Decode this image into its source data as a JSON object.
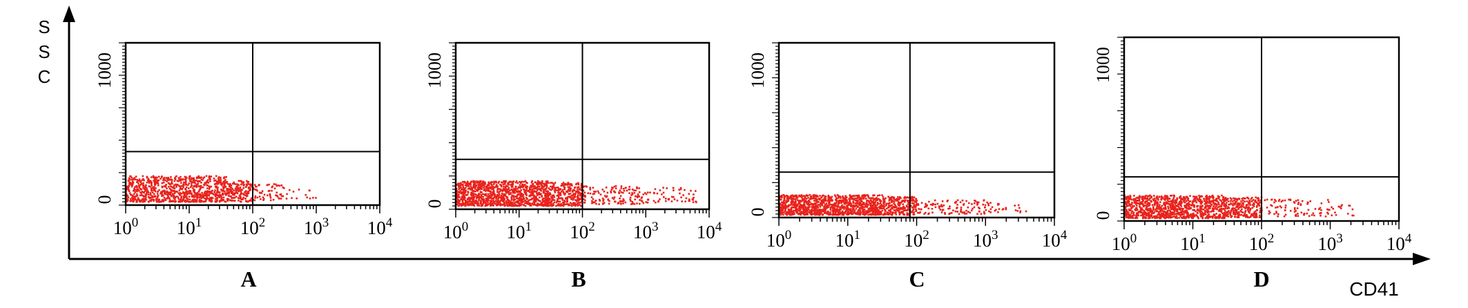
{
  "figure": {
    "y_axis_label": [
      "S",
      "S",
      "C"
    ],
    "x_axis_label": "CD41",
    "colors": {
      "dots": "#e8231c",
      "frame": "#000000",
      "background": "#ffffff"
    }
  },
  "chart_data": [
    {
      "type": "scatter",
      "panel": "A",
      "x_scale": "log",
      "xlim": [
        1,
        10000
      ],
      "ylim": [
        0,
        1000
      ],
      "x_tick_labels": [
        "10^0",
        "10^1",
        "10^2",
        "10^3",
        "10^4"
      ],
      "y_tick_labels": [
        "0",
        "1000"
      ],
      "quadrant_gate": {
        "x": 100,
        "y": 330
      },
      "dot_clusters": [
        {
          "x_log_range": [
            0,
            1.6
          ],
          "y_range": [
            20,
            180
          ],
          "n": 900
        },
        {
          "x_log_range": [
            1.6,
            2.0
          ],
          "y_range": [
            20,
            150
          ],
          "n": 160
        },
        {
          "x_log_range": [
            2.0,
            2.5
          ],
          "y_range": [
            30,
            130
          ],
          "n": 60
        },
        {
          "x_log_range": [
            2.5,
            3.0
          ],
          "y_range": [
            40,
            110
          ],
          "n": 14
        }
      ]
    },
    {
      "type": "scatter",
      "panel": "B",
      "x_scale": "log",
      "xlim": [
        1,
        10000
      ],
      "ylim": [
        0,
        1000
      ],
      "x_tick_labels": [
        "10^0",
        "10^1",
        "10^2",
        "10^3",
        "10^4"
      ],
      "y_tick_labels": [
        "0",
        "1000"
      ],
      "quadrant_gate": {
        "x": 100,
        "y": 300
      },
      "dot_clusters": [
        {
          "x_log_range": [
            0,
            1.5
          ],
          "y_range": [
            20,
            170
          ],
          "n": 1100
        },
        {
          "x_log_range": [
            1.5,
            2.0
          ],
          "y_range": [
            20,
            160
          ],
          "n": 260
        },
        {
          "x_log_range": [
            2.0,
            3.0
          ],
          "y_range": [
            30,
            140
          ],
          "n": 140
        },
        {
          "x_log_range": [
            3.0,
            3.8
          ],
          "y_range": [
            40,
            130
          ],
          "n": 60
        }
      ]
    },
    {
      "type": "scatter",
      "panel": "C",
      "x_scale": "log",
      "xlim": [
        1,
        10000
      ],
      "ylim": [
        0,
        1000
      ],
      "x_tick_labels": [
        "10^0",
        "10^1",
        "10^2",
        "10^3",
        "10^4"
      ],
      "y_tick_labels": [
        "0",
        "1000"
      ],
      "quadrant_gate": {
        "x": 80,
        "y": 260
      },
      "dot_clusters": [
        {
          "x_log_range": [
            0,
            1.5
          ],
          "y_range": [
            15,
            130
          ],
          "n": 1100
        },
        {
          "x_log_range": [
            1.5,
            2.0
          ],
          "y_range": [
            15,
            120
          ],
          "n": 240
        },
        {
          "x_log_range": [
            2.0,
            3.0
          ],
          "y_range": [
            20,
            100
          ],
          "n": 110
        },
        {
          "x_log_range": [
            3.0,
            3.6
          ],
          "y_range": [
            30,
            90
          ],
          "n": 28
        }
      ]
    },
    {
      "type": "scatter",
      "panel": "D",
      "x_scale": "log",
      "xlim": [
        1,
        10000
      ],
      "ylim": [
        0,
        1000
      ],
      "x_tick_labels": [
        "10^0",
        "10^1",
        "10^2",
        "10^3",
        "10^4"
      ],
      "y_tick_labels": [
        "0",
        "1000"
      ],
      "quadrant_gate": {
        "x": 100,
        "y": 240
      },
      "dot_clusters": [
        {
          "x_log_range": [
            0,
            1.5
          ],
          "y_range": [
            15,
            140
          ],
          "n": 1000
        },
        {
          "x_log_range": [
            1.5,
            2.0
          ],
          "y_range": [
            20,
            130
          ],
          "n": 220
        },
        {
          "x_log_range": [
            2.0,
            3.0
          ],
          "y_range": [
            25,
            120
          ],
          "n": 90
        },
        {
          "x_log_range": [
            3.0,
            3.4
          ],
          "y_range": [
            30,
            100
          ],
          "n": 16
        }
      ]
    }
  ]
}
